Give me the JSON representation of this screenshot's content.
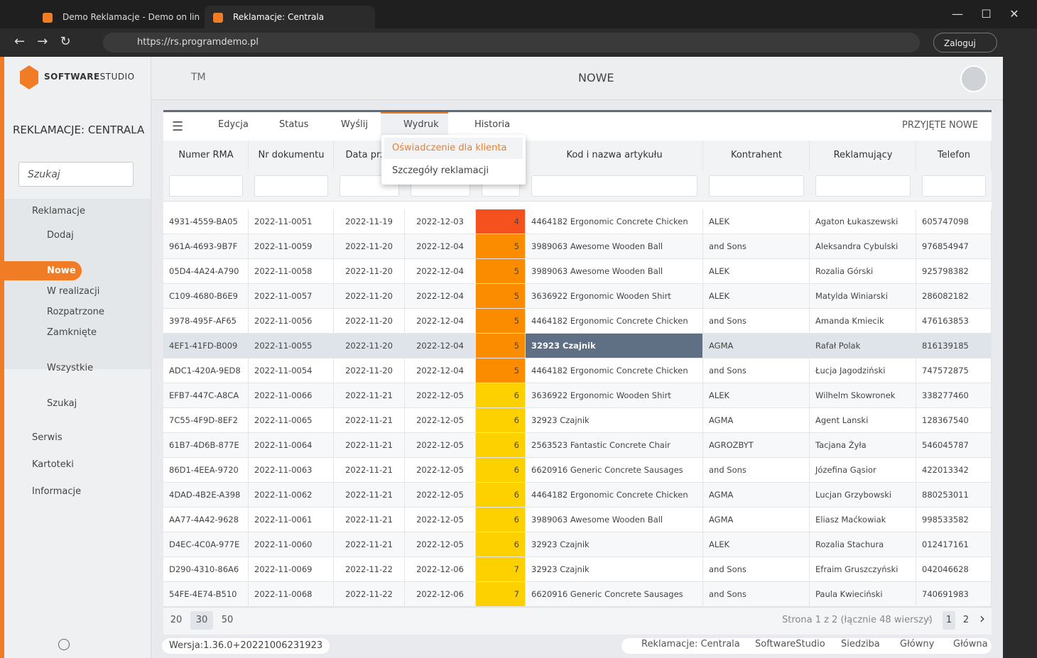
{
  "browser": {
    "tabs": [
      "Demo Reklamacje - Demo on lin",
      "Reklamacje: Centrala"
    ],
    "url": "https://rs.programdemo.pl",
    "login": "Zaloguj"
  },
  "header": {
    "logo_bold": "SOFTWARE",
    "logo_light": "STUDIO",
    "tm": "TM",
    "title": "NOWE"
  },
  "sidebar": {
    "title": "REKLAMACJE: CENTRALA",
    "search": "Szukaj",
    "section": "Reklamacje",
    "items": [
      "Dodaj",
      "Nowe",
      "W realizacji",
      "Rozpatrzone",
      "Zamknięte",
      "Wszystkie",
      "Szukaj"
    ],
    "sections": [
      "Serwis",
      "Kartoteki",
      "Informacje"
    ]
  },
  "toolbar": {
    "buttons": [
      "Edycja",
      "Status",
      "Wyślij",
      "Wydruk",
      "Historia"
    ],
    "right": "PRZYJĘTE NOWE"
  },
  "dropdown": [
    "Oświadczenie dla klienta",
    "Szczegóły reklamacji"
  ],
  "table": {
    "columns": [
      "Numer RMA",
      "Nr dokumentu",
      "Data przyj",
      "Kod i nazwa artykułu",
      "Kontrahent",
      "Reklamujący",
      "Telefon"
    ],
    "day_colors": {
      "4": "#f4511e",
      "5": "#fb8c00",
      "6": "#fdd000",
      "7": "#fdd000"
    },
    "rows": [
      [
        "4931-4559-BA05",
        "2022-11-0051",
        "2022-11-19",
        "2022-12-03",
        4,
        "4464182 Ergonomic Concrete Chicken",
        "ALEK",
        "Agaton Łukaszewski",
        "605747098"
      ],
      [
        "961A-4693-9B7F",
        "2022-11-0059",
        "2022-11-20",
        "2022-12-04",
        5,
        "3989063 Awesome Wooden Ball",
        "and Sons",
        "Aleksandra Cybulski",
        "976854947"
      ],
      [
        "05D4-4A24-A790",
        "2022-11-0058",
        "2022-11-20",
        "2022-12-04",
        5,
        "3989063 Awesome Wooden Ball",
        "ALEK",
        "Rozalia Górski",
        "925798382"
      ],
      [
        "C109-4680-B6E9",
        "2022-11-0057",
        "2022-11-20",
        "2022-12-04",
        5,
        "3636922 Ergonomic Wooden Shirt",
        "ALEK",
        "Matylda Winiarski",
        "286082182"
      ],
      [
        "3978-495F-AF65",
        "2022-11-0056",
        "2022-11-20",
        "2022-12-04",
        5,
        "4464182 Ergonomic Concrete Chicken",
        "and Sons",
        "Amanda Kmiecik",
        "476163853"
      ],
      [
        "4EF1-41FD-B009",
        "2022-11-0055",
        "2022-11-20",
        "2022-12-04",
        5,
        "32923 Czajnik",
        "AGMA",
        "Rafał Polak",
        "816139185"
      ],
      [
        "ADC1-420A-9ED8",
        "2022-11-0054",
        "2022-11-20",
        "2022-12-04",
        5,
        "4464182 Ergonomic Concrete Chicken",
        "and Sons",
        "Łucja Jagodziński",
        "747572875"
      ],
      [
        "EFB7-447C-A8CA",
        "2022-11-0066",
        "2022-11-21",
        "2022-12-05",
        6,
        "3636922 Ergonomic Wooden Shirt",
        "ALEK",
        "Wilhelm Skowronek",
        "338277460"
      ],
      [
        "7C55-4F9D-8EF2",
        "2022-11-0065",
        "2022-11-21",
        "2022-12-05",
        6,
        "32923 Czajnik",
        "AGMA",
        "Agent Lanski",
        "128367540"
      ],
      [
        "61B7-4D6B-877E",
        "2022-11-0064",
        "2022-11-21",
        "2022-12-05",
        6,
        "2563523 Fantastic Concrete Chair",
        "AGROZBYT",
        "Tacjana Żyła",
        "546045787"
      ],
      [
        "86D1-4EEA-9720",
        "2022-11-0063",
        "2022-11-21",
        "2022-12-05",
        6,
        "6620916 Generic Concrete Sausages",
        "and Sons",
        "Józefina Gąsior",
        "422013342"
      ],
      [
        "4DAD-4B2E-A398",
        "2022-11-0062",
        "2022-11-21",
        "2022-12-05",
        6,
        "4464182 Ergonomic Concrete Chicken",
        "AGMA",
        "Lucjan Grzybowski",
        "880253011"
      ],
      [
        "AA77-4A42-9628",
        "2022-11-0061",
        "2022-11-21",
        "2022-12-05",
        6,
        "3989063 Awesome Wooden Ball",
        "AGMA",
        "Eliasz Maćkowiak",
        "998533582"
      ],
      [
        "D4EC-4C0A-977E",
        "2022-11-0060",
        "2022-11-21",
        "2022-12-05",
        6,
        "32923 Czajnik",
        "ALEK",
        "Rozalia Stachura",
        "012417161"
      ],
      [
        "D290-4310-86A6",
        "2022-11-0069",
        "2022-11-22",
        "2022-12-06",
        7,
        "32923 Czajnik",
        "and Sons",
        "Efraim Gruszczyński",
        "042046628"
      ],
      [
        "54FE-4E74-B510",
        "2022-11-0068",
        "2022-11-22",
        "2022-12-06",
        7,
        "6620916 Generic Concrete Sausages",
        "and Sons",
        "Paula Kwieciński",
        "740691983"
      ]
    ]
  },
  "footer": {
    "page_sizes": [
      20,
      30,
      50
    ],
    "info": "Strona 1 z 2 (łącznie 48 wierszy)",
    "pages": [
      1,
      2
    ]
  },
  "status": {
    "version": "Wersja:1.36.0+20221006231923",
    "items": [
      "Reklamacje: Centrala",
      "SoftwareStudio",
      "Siedziba",
      "Główny",
      "Główna"
    ]
  }
}
